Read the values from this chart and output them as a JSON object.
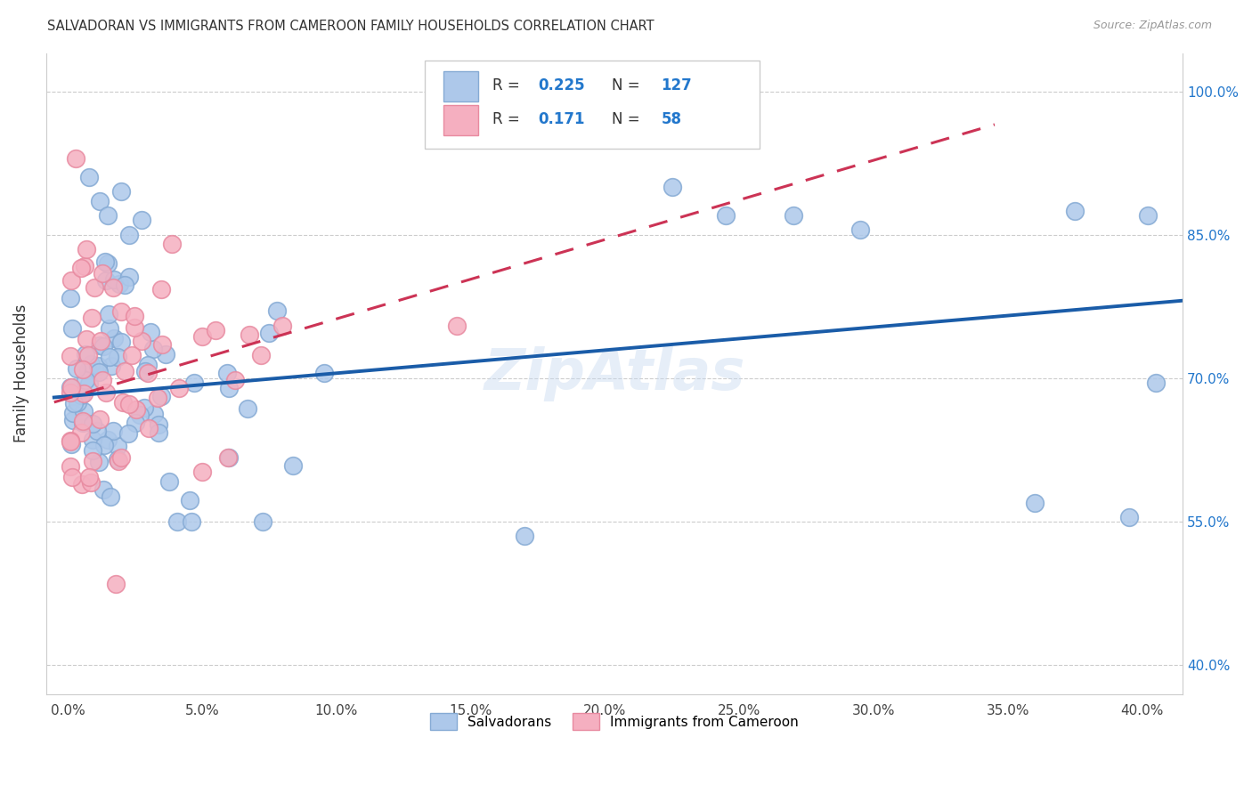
{
  "title": "SALVADORAN VS IMMIGRANTS FROM CAMEROON FAMILY HOUSEHOLDS CORRELATION CHART",
  "source": "Source: ZipAtlas.com",
  "ylabel": "Family Households",
  "legend1_label": "Salvadorans",
  "legend2_label": "Immigrants from Cameroon",
  "R_blue": 0.225,
  "N_blue": 127,
  "R_pink": 0.171,
  "N_pink": 58,
  "blue_color": "#adc8ea",
  "pink_color": "#f5afc0",
  "blue_edge": "#85aad4",
  "pink_edge": "#e88aa0",
  "trend_blue": "#1a5ca8",
  "trend_pink": "#cc3355",
  "background": "#ffffff",
  "grid_color": "#cccccc",
  "x_tick_vals": [
    0,
    5,
    10,
    15,
    20,
    25,
    30,
    35,
    40
  ],
  "y_tick_vals": [
    40,
    55,
    70,
    85,
    100
  ],
  "xlim": [
    -0.8,
    41.5
  ],
  "ylim": [
    37,
    104
  ],
  "blue_trend_y0": 68.0,
  "blue_trend_y1": 78.0,
  "pink_trend_y0": 67.5,
  "pink_trend_y1": 84.5,
  "pink_trend_x1": 20.5
}
